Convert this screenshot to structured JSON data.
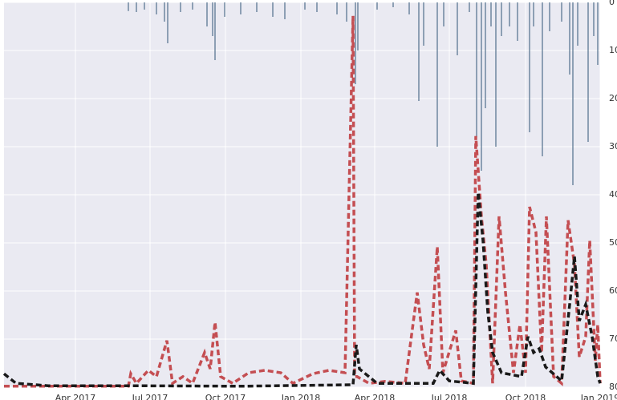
{
  "chart_data": {
    "type": "line",
    "grid": true,
    "xlim": [
      0,
      743
    ],
    "xticks": [
      {
        "value": 89,
        "label": "Apr 2017"
      },
      {
        "value": 182,
        "label": "Jul 2017"
      },
      {
        "value": 276,
        "label": "Oct 2017"
      },
      {
        "value": 370,
        "label": "Jan 2018"
      },
      {
        "value": 462,
        "label": "Apr 2018"
      },
      {
        "value": 555,
        "label": "Jul 2018"
      },
      {
        "value": 650,
        "label": "Oct 2018"
      },
      {
        "value": 743,
        "label": "Jan 2019"
      }
    ],
    "ylim": [
      0,
      80
    ],
    "y2lim": [
      80,
      0
    ],
    "y2ticks": [
      0,
      10,
      20,
      30,
      40,
      50,
      60,
      70,
      80
    ],
    "series": [
      {
        "type": "bar",
        "axis": "y2",
        "color": "#4f6d8a",
        "x": [
          155,
          165,
          175,
          190,
          200,
          204,
          220,
          235,
          253,
          260,
          263,
          275,
          295,
          315,
          335,
          350,
          375,
          390,
          415,
          427,
          438,
          441,
          465,
          485,
          505,
          517,
          523,
          540,
          548,
          565,
          580,
          589,
          595,
          600,
          607,
          613,
          620,
          630,
          640,
          655,
          660,
          671,
          680,
          695,
          705,
          709,
          715,
          728,
          735,
          740
        ],
        "values": [
          1.8,
          2,
          1.5,
          2.5,
          4,
          8.5,
          2,
          1.5,
          5,
          7,
          12,
          3,
          2.5,
          2,
          3,
          3.5,
          1.5,
          2,
          2.5,
          4,
          17,
          10,
          1.5,
          1,
          2.5,
          20.5,
          9,
          30,
          5,
          11,
          2,
          28,
          35,
          22,
          5,
          30,
          7,
          5,
          8,
          27,
          5,
          32,
          6,
          4,
          15,
          38,
          9,
          29,
          7,
          13
        ]
      },
      {
        "color": "#c44e52",
        "linestyle": "dashed",
        "x": [
          0,
          155,
          158,
          165,
          180,
          190,
          203,
          210,
          223,
          235,
          250,
          257,
          263,
          270,
          285,
          305,
          325,
          345,
          360,
          385,
          405,
          425,
          435,
          437,
          440,
          455,
          475,
          500,
          515,
          523,
          530,
          540,
          547,
          563,
          570,
          585,
          588,
          595,
          601,
          609,
          617,
          625,
          635,
          643,
          650,
          655,
          663,
          670,
          676,
          685,
          695,
          703,
          711,
          717,
          725,
          730,
          737,
          740,
          743
        ],
        "values": [
          0.2,
          0.2,
          2.8,
          0.8,
          3.5,
          2.2,
          9.7,
          0.8,
          2.2,
          0.8,
          7.2,
          3.8,
          13.5,
          2.2,
          0.8,
          3,
          3.5,
          3,
          0.8,
          2.8,
          3.5,
          3,
          77.2,
          2.2,
          2.2,
          0.8,
          1.2,
          0.8,
          19.7,
          8.8,
          3.8,
          29.2,
          3,
          11.8,
          1.3,
          0.8,
          52.2,
          35.5,
          25.5,
          0.8,
          35.5,
          19.7,
          3,
          13,
          3,
          37.5,
          32.2,
          7.2,
          35.5,
          2.2,
          0.8,
          34.7,
          25.5,
          6.3,
          10.5,
          30.5,
          5.5,
          13,
          0.8
        ]
      },
      {
        "color": "#1a1a1a",
        "linestyle": "dashed",
        "x": [
          0,
          15,
          55,
          155,
          295,
          435,
          439,
          443,
          465,
          535,
          543,
          555,
          585,
          591,
          597,
          603,
          609,
          620,
          645,
          653,
          660,
          667,
          675,
          695,
          705,
          711,
          717,
          725,
          733,
          740,
          743
        ],
        "values": [
          2.8,
          0.8,
          0.3,
          0.3,
          0.2,
          0.5,
          8.8,
          3.8,
          0.8,
          0.8,
          3.5,
          1.3,
          0.8,
          40.5,
          30.5,
          15.5,
          7.2,
          3,
          2.2,
          10.5,
          7.2,
          8,
          4.2,
          1.3,
          17.2,
          27.2,
          13.8,
          17.2,
          10.5,
          2.2,
          0.8
        ]
      }
    ]
  }
}
